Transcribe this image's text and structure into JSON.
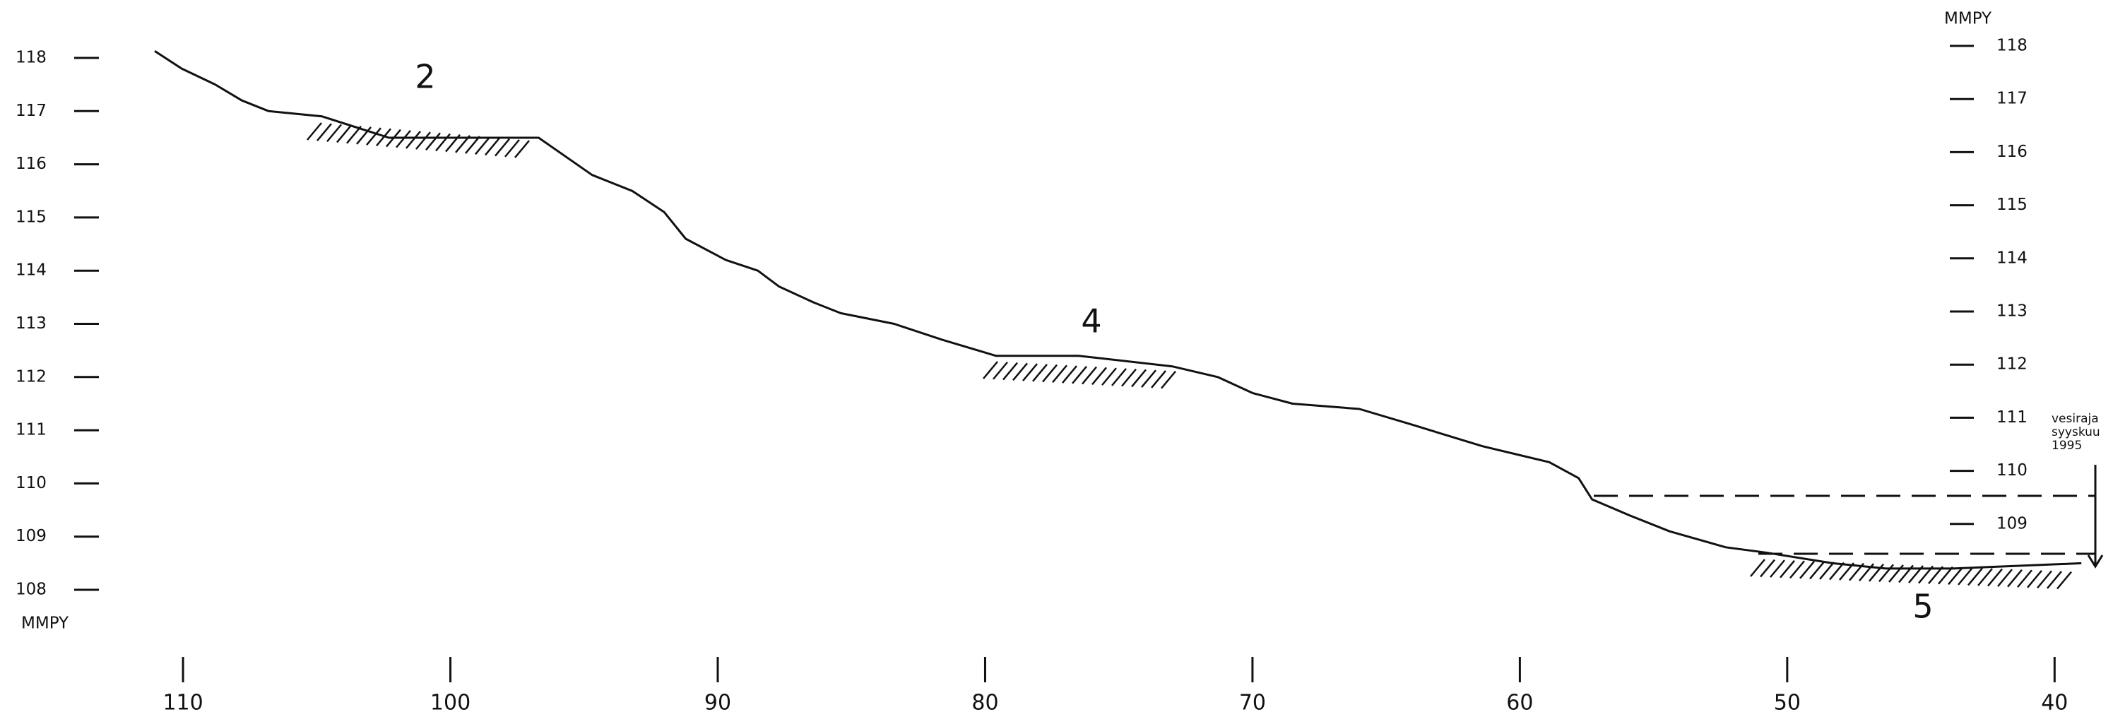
{
  "chart_data": {
    "type": "line",
    "x": [
      111.06,
      110.05,
      108.8,
      107.8,
      106.8,
      104.8,
      102.3,
      100.3,
      96.7,
      94.7,
      93.2,
      92.0,
      91.2,
      89.7,
      88.5,
      87.7,
      86.4,
      85.4,
      83.4,
      81.6,
      79.6,
      76.5,
      73.0,
      71.3,
      70.0,
      68.5,
      66.0,
      64.0,
      61.4,
      58.9,
      57.8,
      57.3,
      55.9,
      54.4,
      52.3,
      50.8,
      48.3,
      46.3,
      43.8,
      39.0
    ],
    "series": [
      {
        "color": "#111111",
        "values": [
          118.13,
          117.8,
          117.5,
          117.2,
          117.0,
          116.9,
          116.5,
          116.5,
          116.5,
          115.8,
          115.5,
          115.1,
          114.6,
          114.2,
          114.0,
          113.7,
          113.4,
          113.2,
          113.0,
          112.7,
          112.4,
          112.4,
          112.2,
          112.0,
          111.7,
          111.5,
          111.4,
          111.1,
          110.7,
          110.4,
          110.1,
          109.7,
          109.4,
          109.1,
          108.8,
          108.7,
          108.5,
          108.4,
          108.4,
          108.5
        ]
      }
    ],
    "xlim": [
      116,
      38
    ],
    "xticks": [
      110,
      100,
      90,
      80,
      70,
      60,
      50,
      40
    ],
    "ylim": [
      108,
      118
    ],
    "yticks": [
      108,
      109,
      110,
      111,
      112,
      113,
      114,
      115,
      116,
      117,
      118
    ],
    "y2lim": [
      108,
      118
    ],
    "y2ticks": [
      109,
      110,
      111,
      112,
      113,
      114,
      115,
      116,
      117,
      118
    ],
    "y_label": "MMPY",
    "y2_label": "MMPY",
    "annotations": [
      "2",
      "4",
      "5",
      "vesiraja",
      "syyskuu",
      "1995"
    ]
  }
}
